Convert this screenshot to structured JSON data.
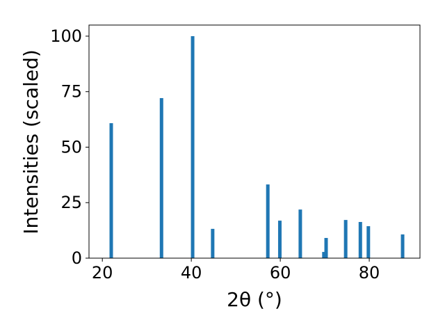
{
  "chart_data": {
    "type": "bar",
    "x": [
      22.0,
      33.3,
      40.3,
      44.8,
      57.2,
      59.9,
      64.5,
      69.8,
      70.3,
      74.7,
      78.0,
      79.8,
      87.5
    ],
    "values": [
      60.8,
      72.1,
      100,
      13.2,
      33.2,
      16.9,
      21.9,
      2.8,
      9.1,
      17.2,
      16.3,
      14.4,
      10.7
    ],
    "color": "#1f77b4",
    "xlabel": "2θ (°)",
    "ylabel": "Intensities (scaled)",
    "xlim": [
      17.0,
      91.4
    ],
    "ylim": [
      0,
      105
    ],
    "xticks": [
      20,
      40,
      60,
      80
    ],
    "yticks": [
      0,
      25,
      50,
      75,
      100
    ],
    "grid": false
  }
}
